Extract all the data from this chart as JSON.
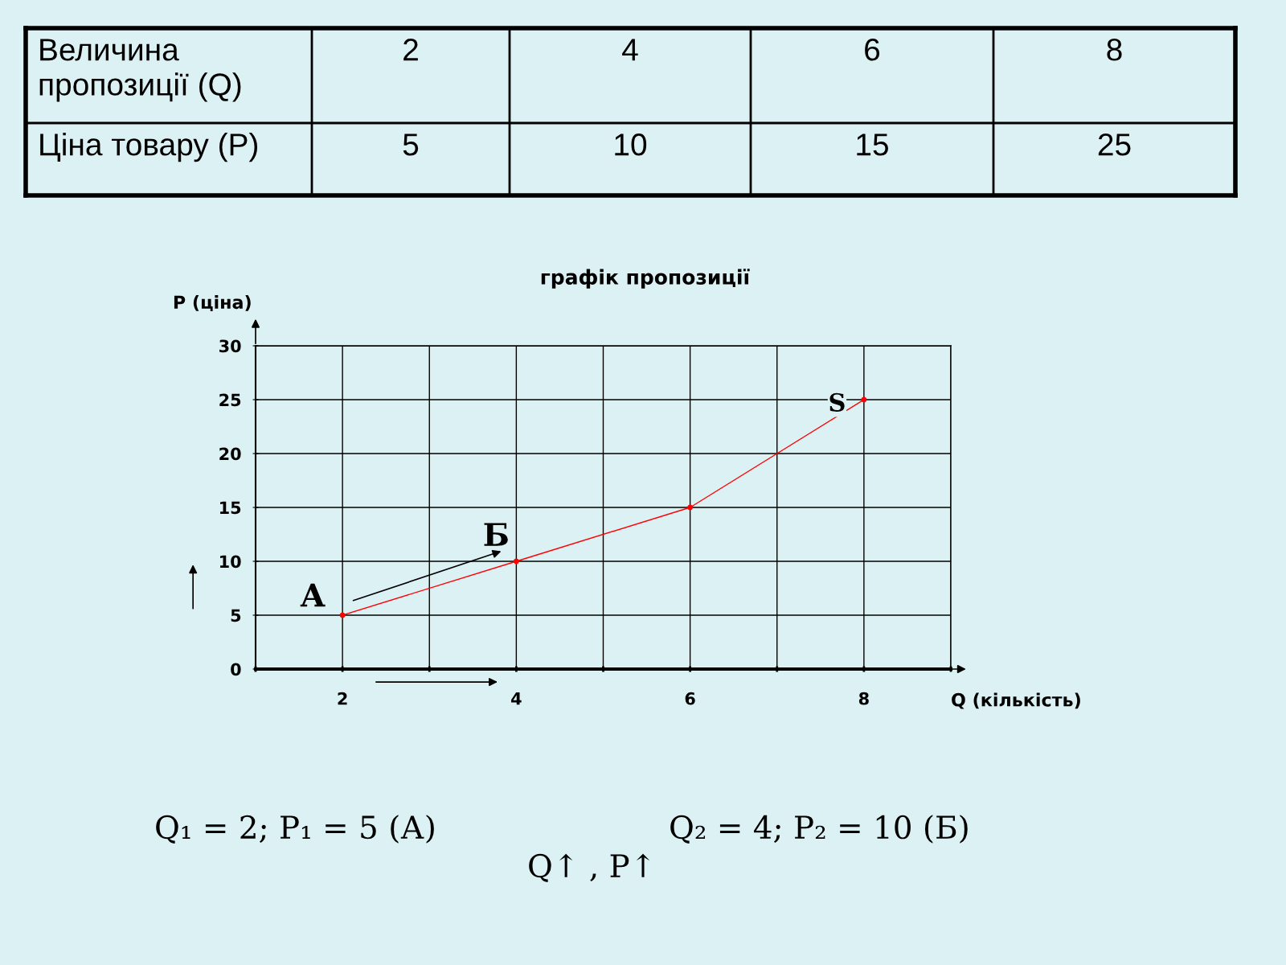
{
  "chart_data": [
    {
      "type": "other",
      "categories": [
        "2",
        "4",
        "6",
        "8"
      ],
      "values": [
        5,
        10,
        15,
        25
      ],
      "data_labels": true,
      "annotations": [
        "Величина пропозиції (Q)",
        "Ціна товару (P)"
      ]
    },
    {
      "type": "line",
      "title": "графік пропозиції",
      "xlabel": "Q (кількість)",
      "ylabel": "P (ціна)",
      "x": [
        2,
        4,
        6,
        8
      ],
      "series": [
        {
          "color": "#ff0000",
          "values": [
            5,
            10,
            15,
            25
          ]
        }
      ],
      "xlim": [
        1,
        9
      ],
      "xticks": [
        {
          "value": 1,
          "label": null
        },
        2,
        {
          "value": 3,
          "label": null
        },
        4,
        {
          "value": 5,
          "label": null
        },
        6,
        {
          "value": 7,
          "label": null
        },
        8,
        {
          "value": 9,
          "label": null
        }
      ],
      "ylim": [
        0,
        30
      ],
      "yticks": [
        0,
        5,
        10,
        15,
        20,
        25,
        30
      ],
      "grid": true,
      "marker": "circle",
      "line_style": "solid",
      "annotations": [
        {
          "text": "А",
          "x": 2,
          "y": 5
        },
        {
          "text": "Б",
          "x": 4,
          "y": 10
        },
        {
          "text": "S",
          "x": 8,
          "y": 25
        },
        "Q₁ = 2; P₁ = 5 (А)",
        "Q₂ = 4; P₂ = 10 (Б)",
        "Q↑ , P↑"
      ]
    }
  ]
}
